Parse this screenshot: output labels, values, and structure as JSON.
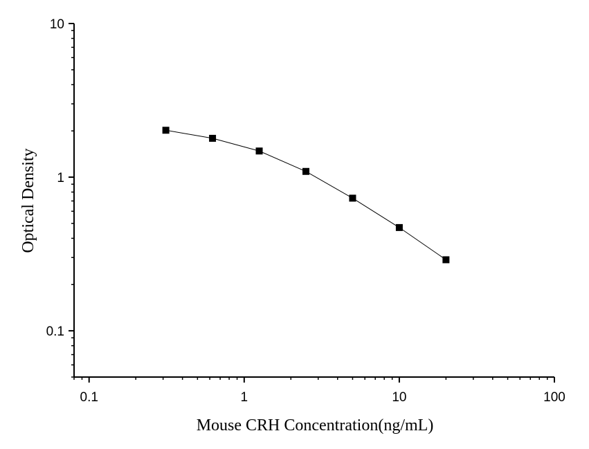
{
  "chart_data": {
    "type": "line",
    "title": "",
    "xlabel": "Mouse CRH  Concentration(ng/mL)",
    "ylabel": "Optical Density",
    "x_scale": "log",
    "y_scale": "log",
    "xlim": [
      0.08,
      100
    ],
    "ylim": [
      0.05,
      10
    ],
    "x_ticks": [
      0.1,
      1,
      10,
      100
    ],
    "x_tick_labels": [
      "0.1",
      "1",
      "10",
      "100"
    ],
    "y_ticks": [
      0.1,
      1,
      10
    ],
    "y_tick_labels": [
      "0.1",
      "1",
      "10"
    ],
    "grid": false,
    "legend": "none",
    "marker": "square",
    "colors": {
      "series": "#000000",
      "axis": "#000000",
      "background": "#ffffff"
    },
    "series": [
      {
        "x": [
          0.3125,
          0.625,
          1.25,
          2.5,
          5,
          10,
          20
        ],
        "y": [
          2.02,
          1.79,
          1.48,
          1.09,
          0.73,
          0.47,
          0.29
        ]
      }
    ]
  }
}
